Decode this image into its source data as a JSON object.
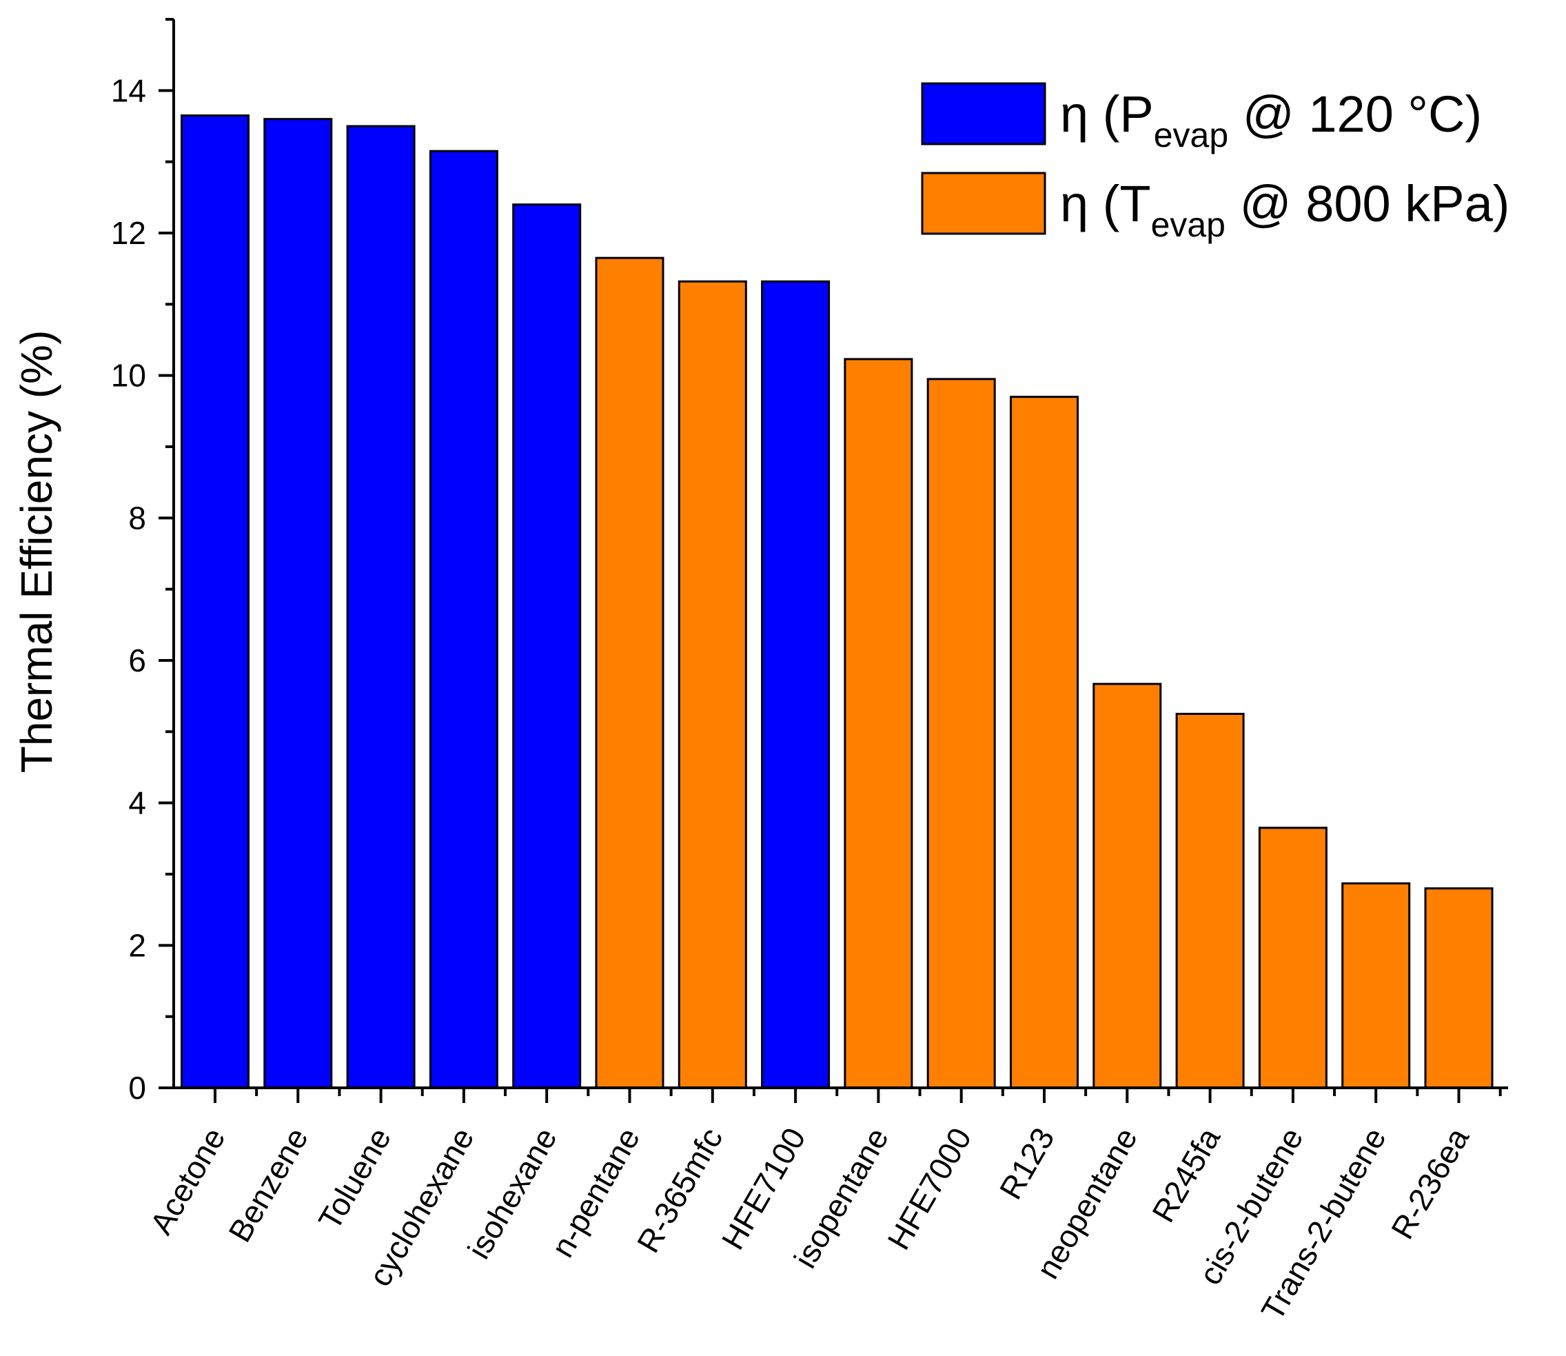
{
  "chart_data": {
    "type": "bar",
    "title": "",
    "xlabel": "",
    "ylabel": "Thermal Efficiency (%)",
    "ylim": [
      0,
      15
    ],
    "yticks": [
      0,
      2,
      4,
      6,
      8,
      10,
      12,
      14
    ],
    "grid": false,
    "legend_position": "top-right",
    "colors": {
      "pevap": "#0000ff",
      "tevap": "#ff8000",
      "edge": "#000000"
    },
    "series": [
      {
        "key": "pevap",
        "name_main": "η (P",
        "name_sub": "evap",
        "name_rest": " @ 120 °C)"
      },
      {
        "key": "tevap",
        "name_main": "η (T",
        "name_sub": "evap",
        "name_rest": " @ 800 kPa)"
      }
    ],
    "categories": [
      "Acetone",
      "Benzene",
      "Toluene",
      "cyclohexane",
      "isohexane",
      "n-pentane",
      "R-365mfc",
      "HFE7100",
      "isopentane",
      "HFE7000",
      "R123",
      "neopentane",
      "R245fa",
      "cis-2-butene",
      "Trans-2-butene",
      "R-236ea"
    ],
    "values": [
      13.65,
      13.6,
      13.5,
      13.15,
      12.4,
      11.65,
      11.32,
      11.32,
      10.23,
      9.95,
      9.7,
      5.67,
      5.25,
      3.65,
      2.87,
      2.8
    ],
    "bar_series": [
      "pevap",
      "pevap",
      "pevap",
      "pevap",
      "pevap",
      "tevap",
      "tevap",
      "pevap",
      "tevap",
      "tevap",
      "tevap",
      "tevap",
      "tevap",
      "tevap",
      "tevap",
      "tevap"
    ]
  }
}
